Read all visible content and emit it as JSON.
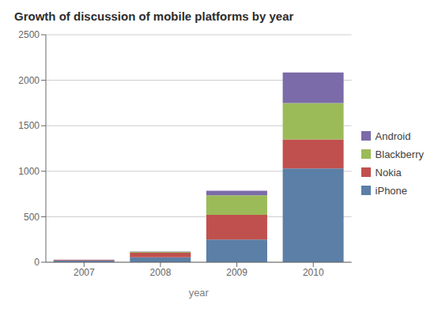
{
  "chart_data": {
    "type": "bar",
    "title": "Growth of discussion of mobile platforms by year",
    "xlabel": "year",
    "categories": [
      "2007",
      "2008",
      "2009",
      "2010"
    ],
    "series": [
      {
        "name": "iPhone",
        "color": "#5B7FA6",
        "values": [
          20,
          55,
          250,
          1030
        ]
      },
      {
        "name": "Nokia",
        "color": "#C0504D",
        "values": [
          5,
          50,
          270,
          320
        ]
      },
      {
        "name": "Blackberry",
        "color": "#9BBB59",
        "values": [
          2,
          8,
          215,
          400
        ]
      },
      {
        "name": "Android",
        "color": "#7B6BA8",
        "values": [
          1,
          5,
          50,
          335
        ]
      }
    ],
    "stacked": true,
    "ylim": [
      0,
      2500
    ],
    "yticks": [
      0,
      500,
      1000,
      1500,
      2000,
      2500
    ],
    "grid": true,
    "legend": "right"
  }
}
